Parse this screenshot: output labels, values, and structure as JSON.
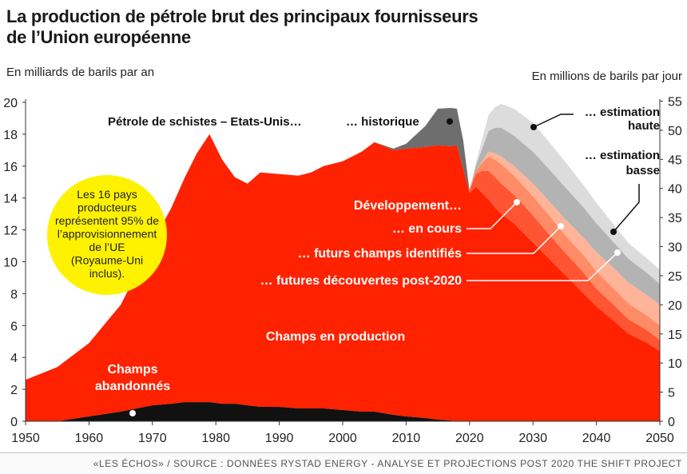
{
  "title_line1": "La production de pétrole brut des principaux fournisseurs",
  "title_line2": "de l’Union européenne",
  "left_unit": "En milliards de barils par an",
  "right_unit": "En millions de barils par jour",
  "footer": "«LES ÉCHOS» / SOURCE : DONNÉES RYSTAD ENERGY - ANALYSE ET PROJECTIONS POST 2020 THE SHIFT PROJECT",
  "colors": {
    "production": "#ff2200",
    "abandoned": "#111111",
    "shale": "#6e6e6e",
    "dev_in_progress": "#ff5533",
    "identified_fields": "#ff8c66",
    "future_discoveries": "#ffb399",
    "estimate_low": "#b3b3b3",
    "estimate_high": "#dcdcdc",
    "bubble": "#fff200"
  },
  "chart_data": {
    "type": "area",
    "x": [
      1950,
      1955,
      1960,
      1965,
      1970,
      1973,
      1975,
      1977,
      1979,
      1981,
      1983,
      1985,
      1987,
      1990,
      1993,
      1995,
      1997,
      2000,
      2003,
      2005,
      2008,
      2010,
      2013,
      2015,
      2017,
      2018,
      2019,
      2020,
      2021,
      2022,
      2023,
      2024,
      2025,
      2027,
      2030,
      2033,
      2035,
      2038,
      2040,
      2043,
      2045,
      2048,
      2050
    ],
    "x_range": [
      1950,
      2050
    ],
    "x_ticks": [
      "1950",
      "1960",
      "1970",
      "1980",
      "1990",
      "2000",
      "2010",
      "2020",
      "2030",
      "2040",
      "2050"
    ],
    "y_left_range": [
      0,
      20
    ],
    "y_left_ticks": [
      "0",
      "2",
      "4",
      "6",
      "8",
      "10",
      "12",
      "14",
      "16",
      "18",
      "20"
    ],
    "y_right_ticks": [
      "0",
      "5",
      "10",
      "15",
      "20",
      "25",
      "30",
      "35",
      "40",
      "45",
      "50",
      "55"
    ],
    "grid": false,
    "series": [
      {
        "key": "abandoned",
        "name": "Champs abandonnés",
        "values": [
          0,
          0,
          0.3,
          0.6,
          1.0,
          1.1,
          1.2,
          1.2,
          1.2,
          1.1,
          1.1,
          1.0,
          0.9,
          0.9,
          0.8,
          0.8,
          0.8,
          0.7,
          0.6,
          0.6,
          0.4,
          0.3,
          0.2,
          0.1,
          0.05,
          0,
          0,
          0,
          0,
          0,
          0,
          0,
          0,
          0,
          0,
          0,
          0,
          0,
          0,
          0,
          0,
          0,
          0
        ]
      },
      {
        "key": "production",
        "name": "Champs en production",
        "values": [
          2.6,
          3.4,
          4.6,
          6.7,
          10.2,
          12.3,
          14.0,
          15.6,
          16.8,
          15.3,
          14.2,
          13.9,
          14.7,
          14.6,
          14.6,
          14.8,
          15.2,
          15.6,
          16.3,
          16.9,
          16.6,
          16.8,
          17.0,
          17.2,
          17.2,
          17.3,
          15.8,
          14.3,
          14.7,
          14.3,
          13.9,
          13.4,
          13.0,
          12.4,
          11.2,
          10.0,
          9.2,
          8.0,
          7.2,
          6.2,
          5.5,
          4.9,
          4.4
        ]
      },
      {
        "key": "shale",
        "name": "Pétrole de schistes – Etats-Unis…",
        "values": [
          0,
          0,
          0,
          0,
          0,
          0,
          0,
          0,
          0,
          0,
          0,
          0,
          0,
          0,
          0,
          0,
          0,
          0,
          0,
          0,
          0.1,
          0.3,
          1.3,
          2.3,
          2.4,
          2.3,
          1.8,
          0,
          0,
          0,
          0,
          0,
          0,
          0,
          0,
          0,
          0,
          0,
          0,
          0,
          0,
          0,
          0
        ]
      },
      {
        "key": "dev_in_progress",
        "name": "… en cours",
        "values": [
          0,
          0,
          0,
          0,
          0,
          0,
          0,
          0,
          0,
          0,
          0,
          0,
          0,
          0,
          0,
          0,
          0,
          0,
          0,
          0,
          0,
          0,
          0,
          0,
          0,
          0,
          0,
          0.2,
          0.8,
          1.4,
          1.8,
          1.9,
          1.9,
          1.8,
          1.7,
          1.5,
          1.4,
          1.3,
          1.1,
          1.0,
          0.9,
          0.8,
          0.7
        ]
      },
      {
        "key": "identified_fields",
        "name": "… futurs champs identifiés",
        "values": [
          0,
          0,
          0,
          0,
          0,
          0,
          0,
          0,
          0,
          0,
          0,
          0,
          0,
          0,
          0,
          0,
          0,
          0,
          0,
          0,
          0,
          0,
          0,
          0,
          0,
          0,
          0,
          0,
          0.2,
          0.5,
          0.9,
          1.1,
          1.2,
          1.2,
          1.2,
          1.2,
          1.1,
          1.1,
          1.1,
          1.0,
          1.0,
          0.9,
          0.9
        ]
      },
      {
        "key": "future_discoveries",
        "name": "… futures découvertes post-2020",
        "values": [
          0,
          0,
          0,
          0,
          0,
          0,
          0,
          0,
          0,
          0,
          0,
          0,
          0,
          0,
          0,
          0,
          0,
          0,
          0,
          0,
          0,
          0,
          0,
          0,
          0,
          0,
          0,
          0,
          0,
          0.1,
          0.3,
          0.4,
          0.5,
          0.6,
          0.8,
          0.9,
          1.0,
          1.1,
          1.2,
          1.3,
          1.3,
          1.3,
          1.3
        ]
      },
      {
        "key": "estimate_low",
        "name": "… estimation basse",
        "values": [
          0,
          0,
          0,
          0,
          0,
          0,
          0,
          0,
          0,
          0,
          0,
          0,
          0,
          0,
          0,
          0,
          0,
          0,
          0,
          0,
          0,
          0,
          0,
          0,
          0,
          0,
          0,
          0,
          0.3,
          0.8,
          1.3,
          1.6,
          1.8,
          1.9,
          2.0,
          2.0,
          2.0,
          1.9,
          1.8,
          1.6,
          1.5,
          1.4,
          1.3
        ]
      },
      {
        "key": "estimate_high",
        "name": "… estimation haute",
        "values": [
          0,
          0,
          0,
          0,
          0,
          0,
          0,
          0,
          0,
          0,
          0,
          0,
          0,
          0,
          0,
          0,
          0,
          0,
          0,
          0,
          0,
          0,
          0,
          0,
          0,
          0,
          0,
          0,
          0.2,
          0.6,
          1.0,
          1.3,
          1.5,
          1.7,
          1.8,
          1.7,
          1.6,
          1.4,
          1.3,
          1.1,
          1.0,
          0.9,
          0.9
        ]
      }
    ],
    "annotations": {
      "shale": "Pétrole de schistes – Etats-Unis…",
      "historic": "… historique",
      "high_estimate_line1": "… estimation",
      "high_estimate_line2": "haute",
      "low_estimate_line1": "… estimation",
      "low_estimate_line2": "basse",
      "development": "Développement…",
      "in_progress": "… en cours",
      "identified": "… futurs champs identifiés",
      "discoveries": "… futures découvertes post-2020",
      "production": "Champs en production",
      "abandoned_line1": "Champs",
      "abandoned_line2": "abandonnés",
      "bubble_lines": [
        "Les 16 pays",
        "producteurs",
        "représentent 95% de",
        "l’approvisionnement",
        "de l’UE",
        "(Royaume-Uni",
        "inclus)."
      ]
    }
  }
}
